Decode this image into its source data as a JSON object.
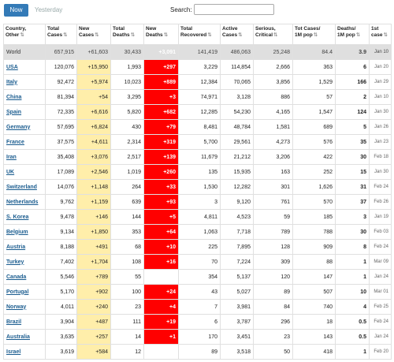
{
  "tabs": {
    "now": "Now",
    "yesterday": "Yesterday"
  },
  "search": {
    "label": "Search:",
    "value": ""
  },
  "columns": [
    "Country,\nOther",
    "Total\nCases",
    "New\nCases",
    "Total\nDeaths",
    "New\nDeaths",
    "Total\nRecovered",
    "Active\nCases",
    "Serious,\nCritical",
    "Tot Cases/\n1M pop",
    "Deaths/\n1M pop",
    "1st\ncase"
  ],
  "rows": [
    [
      "World",
      "657,915",
      "+61,603",
      "30,433",
      "+3,091",
      "141,419",
      "486,063",
      "25,248",
      "84.4",
      "3.9",
      "Jan 10"
    ],
    [
      "USA",
      "120,076",
      "+15,950",
      "1,993",
      "+297",
      "3,229",
      "114,854",
      "2,666",
      "363",
      "6",
      "Jan 20"
    ],
    [
      "Italy",
      "92,472",
      "+5,974",
      "10,023",
      "+889",
      "12,384",
      "70,065",
      "3,856",
      "1,529",
      "166",
      "Jan 29"
    ],
    [
      "China",
      "81,394",
      "+54",
      "3,295",
      "+3",
      "74,971",
      "3,128",
      "886",
      "57",
      "2",
      "Jan 10"
    ],
    [
      "Spain",
      "72,335",
      "+6,616",
      "5,820",
      "+682",
      "12,285",
      "54,230",
      "4,165",
      "1,547",
      "124",
      "Jan 30"
    ],
    [
      "Germany",
      "57,695",
      "+6,824",
      "430",
      "+79",
      "8,481",
      "48,784",
      "1,581",
      "689",
      "5",
      "Jan 26"
    ],
    [
      "France",
      "37,575",
      "+4,611",
      "2,314",
      "+319",
      "5,700",
      "29,561",
      "4,273",
      "576",
      "35",
      "Jan 23"
    ],
    [
      "Iran",
      "35,408",
      "+3,076",
      "2,517",
      "+139",
      "11,679",
      "21,212",
      "3,206",
      "422",
      "30",
      "Feb 18"
    ],
    [
      "UK",
      "17,089",
      "+2,546",
      "1,019",
      "+260",
      "135",
      "15,935",
      "163",
      "252",
      "15",
      "Jan 30"
    ],
    [
      "Switzerland",
      "14,076",
      "+1,148",
      "264",
      "+33",
      "1,530",
      "12,282",
      "301",
      "1,626",
      "31",
      "Feb 24"
    ],
    [
      "Netherlands",
      "9,762",
      "+1,159",
      "639",
      "+93",
      "3",
      "9,120",
      "761",
      "570",
      "37",
      "Feb 26"
    ],
    [
      "S. Korea",
      "9,478",
      "+146",
      "144",
      "+5",
      "4,811",
      "4,523",
      "59",
      "185",
      "3",
      "Jan 19"
    ],
    [
      "Belgium",
      "9,134",
      "+1,850",
      "353",
      "+64",
      "1,063",
      "7,718",
      "789",
      "788",
      "30",
      "Feb 03"
    ],
    [
      "Austria",
      "8,188",
      "+491",
      "68",
      "+10",
      "225",
      "7,895",
      "128",
      "909",
      "8",
      "Feb 24"
    ],
    [
      "Turkey",
      "7,402",
      "+1,704",
      "108",
      "+16",
      "70",
      "7,224",
      "309",
      "88",
      "1",
      "Mar 09"
    ],
    [
      "Canada",
      "5,546",
      "+789",
      "55",
      "",
      "354",
      "5,137",
      "120",
      "147",
      "1",
      "Jan 24"
    ],
    [
      "Portugal",
      "5,170",
      "+902",
      "100",
      "+24",
      "43",
      "5,027",
      "89",
      "507",
      "10",
      "Mar 01"
    ],
    [
      "Norway",
      "4,011",
      "+240",
      "23",
      "+4",
      "7",
      "3,981",
      "84",
      "740",
      "4",
      "Feb 25"
    ],
    [
      "Brazil",
      "3,904",
      "+487",
      "111",
      "+19",
      "6",
      "3,787",
      "296",
      "18",
      "0.5",
      "Feb 24"
    ],
    [
      "Australia",
      "3,635",
      "+257",
      "14",
      "+1",
      "170",
      "3,451",
      "23",
      "143",
      "0.5",
      "Jan 24"
    ],
    [
      "Israel",
      "3,619",
      "+584",
      "12",
      "",
      "89",
      "3,518",
      "50",
      "418",
      "1",
      "Feb 20"
    ]
  ],
  "colors": {
    "new_deaths_highlight": "#ff0000",
    "new_cases_highlight": "#ffeeaa",
    "world_row": "#dfdfdf",
    "link": "#1a5c8f",
    "tab_active": "#337ab7"
  }
}
